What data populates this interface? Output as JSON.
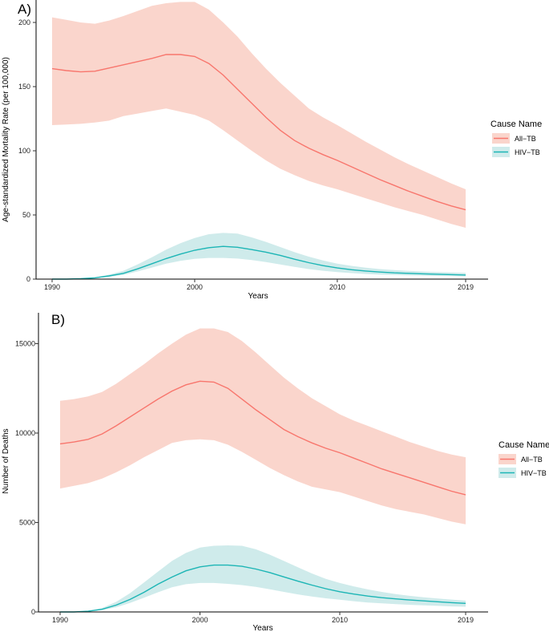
{
  "chart_data": [
    {
      "panel": "A)",
      "type": "line",
      "xlabel": "Years",
      "ylabel": "Age-standardized Mortality Rate (per 100,000)",
      "xlim": [
        1990,
        2019
      ],
      "ylim": [
        0,
        210
      ],
      "x_ticks": [
        1990,
        2000,
        2010,
        2019
      ],
      "y_ticks": [
        0,
        50,
        100,
        150,
        200
      ],
      "legend": {
        "title": "Cause Name",
        "position": "right"
      },
      "x": [
        1990,
        1991,
        1992,
        1993,
        1994,
        1995,
        1996,
        1997,
        1998,
        1999,
        2000,
        2001,
        2002,
        2003,
        2004,
        2005,
        2006,
        2007,
        2008,
        2009,
        2010,
        2011,
        2012,
        2013,
        2014,
        2015,
        2016,
        2017,
        2018,
        2019
      ],
      "series": [
        {
          "name": "All−TB",
          "color": "#F8766D",
          "band_color": "#FAD5CC",
          "values": [
            164,
            162.5,
            161.5,
            162,
            164.5,
            167,
            169.5,
            172,
            175,
            175,
            173.5,
            168,
            159,
            148,
            137,
            126,
            116,
            108,
            102,
            97,
            92.5,
            87.5,
            82.5,
            77.5,
            73,
            68.5,
            64.5,
            60.5,
            57,
            54
          ],
          "lower": [
            120,
            120.5,
            121,
            122,
            123.5,
            127,
            129,
            131,
            133,
            130.5,
            128,
            123.5,
            116,
            108,
            100,
            92.5,
            86,
            81,
            76.5,
            73,
            70,
            66.5,
            63,
            59.5,
            56,
            53,
            50,
            46.5,
            43,
            40
          ],
          "upper": [
            204,
            202,
            200,
            199,
            201.5,
            205,
            209,
            213,
            215,
            216,
            216,
            210,
            200,
            189,
            176,
            164,
            153,
            143,
            133,
            126,
            120,
            113.5,
            107,
            101,
            95,
            89.5,
            84.5,
            79.5,
            74.5,
            70
          ]
        },
        {
          "name": "HIV−TB",
          "color": "#1CB5B5",
          "band_color": "#CFEBEB",
          "values": [
            0,
            0,
            0.3,
            1,
            2.5,
            4.5,
            8,
            12,
            16,
            19.5,
            22.5,
            24.5,
            25.5,
            24.8,
            23,
            21,
            18.5,
            15.5,
            12.8,
            10.5,
            8.7,
            7.3,
            6.3,
            5.5,
            4.9,
            4.5,
            4.1,
            3.8,
            3.5,
            3.2
          ],
          "lower": [
            0,
            0,
            0.2,
            0.8,
            1.8,
            3.3,
            6,
            9,
            12,
            14.2,
            15.8,
            16.5,
            16.5,
            16,
            14.8,
            13.3,
            11.4,
            9.5,
            7.8,
            6.5,
            5.5,
            4.7,
            4,
            3.5,
            3.2,
            2.9,
            2.7,
            2.5,
            2.3,
            2.1
          ],
          "upper": [
            0,
            0,
            0.4,
            1.3,
            3.5,
            6.5,
            11.5,
            17,
            23,
            28,
            32,
            35,
            36,
            35.5,
            32.5,
            29,
            25,
            21,
            17.5,
            14.5,
            12,
            10.3,
            8.9,
            7.8,
            7,
            6.4,
            5.9,
            5.5,
            5.1,
            4.8
          ]
        }
      ]
    },
    {
      "panel": "B)",
      "type": "line",
      "xlabel": "Years",
      "ylabel": "Number of Deaths",
      "xlim": [
        1990,
        2019
      ],
      "ylim": [
        0,
        16500
      ],
      "x_ticks": [
        1990,
        2000,
        2010,
        2019
      ],
      "y_ticks": [
        0,
        5000,
        10000,
        15000
      ],
      "legend": {
        "title": "Cause Name",
        "position": "right"
      },
      "x": [
        1990,
        1991,
        1992,
        1993,
        1994,
        1995,
        1996,
        1997,
        1998,
        1999,
        2000,
        2001,
        2002,
        2003,
        2004,
        2005,
        2006,
        2007,
        2008,
        2009,
        2010,
        2011,
        2012,
        2013,
        2014,
        2015,
        2016,
        2017,
        2018,
        2019
      ],
      "series": [
        {
          "name": "All−TB",
          "color": "#F8766D",
          "band_color": "#FAD5CC",
          "values": [
            9400,
            9500,
            9650,
            9950,
            10400,
            10900,
            11400,
            11900,
            12350,
            12700,
            12900,
            12850,
            12500,
            11900,
            11300,
            10750,
            10200,
            9800,
            9450,
            9150,
            8900,
            8600,
            8300,
            8000,
            7750,
            7500,
            7250,
            7000,
            6750,
            6550
          ],
          "lower": [
            6900,
            7050,
            7200,
            7450,
            7800,
            8200,
            8650,
            9050,
            9450,
            9600,
            9650,
            9600,
            9350,
            8950,
            8500,
            8050,
            7650,
            7300,
            7000,
            6850,
            6700,
            6450,
            6200,
            5950,
            5750,
            5600,
            5450,
            5250,
            5050,
            4900
          ],
          "upper": [
            11800,
            11900,
            12050,
            12300,
            12750,
            13300,
            13850,
            14450,
            15000,
            15500,
            15850,
            15850,
            15650,
            15150,
            14500,
            13800,
            13100,
            12500,
            11950,
            11500,
            11050,
            10700,
            10400,
            10100,
            9800,
            9500,
            9250,
            9000,
            8800,
            8650
          ]
        },
        {
          "name": "HIV−TB",
          "color": "#1CB5B5",
          "band_color": "#CFEBEB",
          "values": [
            0,
            0,
            40,
            150,
            380,
            700,
            1100,
            1550,
            1950,
            2300,
            2520,
            2620,
            2620,
            2550,
            2400,
            2200,
            1960,
            1720,
            1500,
            1300,
            1130,
            1000,
            890,
            800,
            730,
            670,
            620,
            570,
            520,
            480
          ],
          "lower": [
            0,
            0,
            30,
            100,
            260,
            500,
            800,
            1100,
            1380,
            1550,
            1620,
            1620,
            1570,
            1500,
            1400,
            1270,
            1120,
            980,
            860,
            760,
            680,
            600,
            530,
            480,
            440,
            400,
            370,
            340,
            310,
            290
          ],
          "upper": [
            0,
            0,
            60,
            220,
            560,
            1050,
            1650,
            2250,
            2850,
            3300,
            3600,
            3700,
            3720,
            3700,
            3500,
            3200,
            2850,
            2500,
            2150,
            1850,
            1620,
            1430,
            1260,
            1120,
            1000,
            900,
            820,
            750,
            690,
            630
          ]
        }
      ]
    }
  ]
}
